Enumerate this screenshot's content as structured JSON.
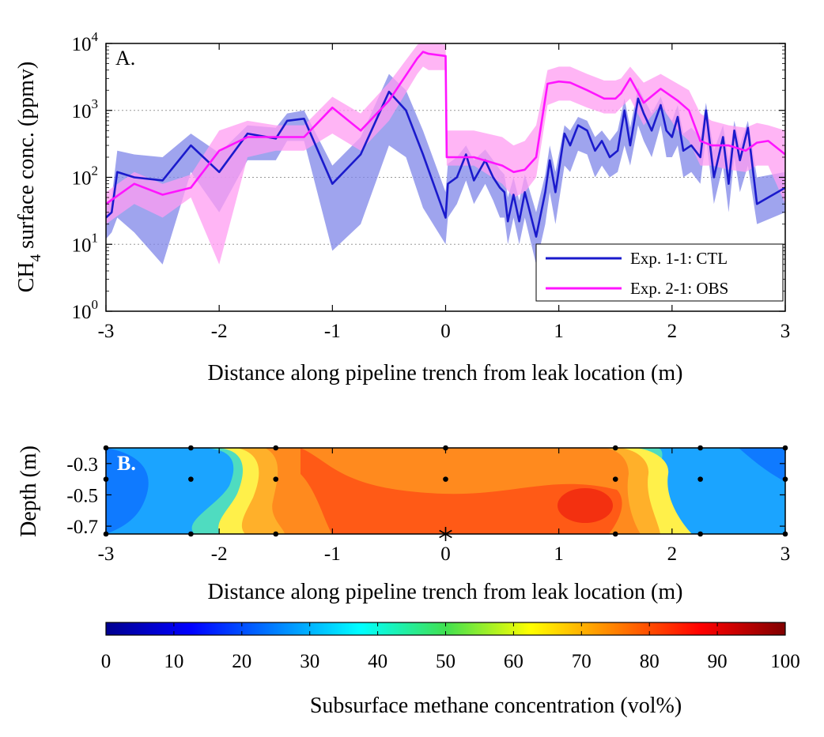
{
  "chart_data": [
    {
      "panel": "A.",
      "type": "line",
      "xlabel": "Distance along pipeline trench from leak location (m)",
      "ylabel_main": "CH",
      "ylabel_sub": "4",
      "ylabel_rest": " surface conc. (ppmv)",
      "xlim": [
        -3,
        3
      ],
      "ylim": [
        1,
        10000
      ],
      "yscale": "log",
      "xticks": [
        "-3",
        "-2",
        "-1",
        "0",
        "1",
        "2",
        "3"
      ],
      "yticks": [
        {
          "base": "10",
          "exp": "0"
        },
        {
          "base": "10",
          "exp": "1"
        },
        {
          "base": "10",
          "exp": "2"
        },
        {
          "base": "10",
          "exp": "3"
        },
        {
          "base": "10",
          "exp": "4"
        }
      ],
      "grid": "horizontal dotted at decades",
      "legend_position": "bottom-right",
      "series": [
        {
          "name": "Exp. 1-1: CTL",
          "color": "#1a1acc",
          "band_color": "#7f86e8",
          "x": [
            -3.0,
            -2.95,
            -2.9,
            -2.75,
            -2.5,
            -2.25,
            -2.0,
            -1.75,
            -1.5,
            -1.4,
            -1.25,
            -1.0,
            -0.75,
            -0.5,
            -0.35,
            -0.2,
            0.0,
            0.02,
            0.1,
            0.18,
            0.25,
            0.35,
            0.42,
            0.48,
            0.52,
            0.55,
            0.6,
            0.65,
            0.7,
            0.8,
            0.88,
            0.92,
            0.97,
            1.05,
            1.1,
            1.17,
            1.25,
            1.32,
            1.38,
            1.45,
            1.52,
            1.58,
            1.63,
            1.7,
            1.75,
            1.82,
            1.9,
            1.95,
            2.0,
            2.05,
            2.1,
            2.17,
            2.25,
            2.3,
            2.37,
            2.45,
            2.5,
            2.55,
            2.6,
            2.67,
            2.75,
            3.0
          ],
          "values": [
            25,
            30,
            120,
            100,
            90,
            300,
            120,
            450,
            380,
            700,
            750,
            80,
            220,
            1900,
            1000,
            220,
            25,
            80,
            100,
            220,
            90,
            180,
            100,
            70,
            60,
            22,
            55,
            22,
            60,
            13,
            60,
            180,
            60,
            450,
            300,
            600,
            500,
            250,
            350,
            200,
            250,
            1000,
            300,
            1500,
            900,
            500,
            1200,
            500,
            400,
            800,
            250,
            300,
            200,
            1000,
            100,
            400,
            80,
            500,
            180,
            550,
            40,
            70
          ],
          "upper": [
            40,
            50,
            250,
            220,
            200,
            450,
            230,
            600,
            550,
            900,
            1000,
            150,
            400,
            3500,
            2000,
            500,
            60,
            160,
            200,
            300,
            180,
            260,
            180,
            130,
            110,
            50,
            100,
            45,
            110,
            30,
            110,
            300,
            120,
            600,
            500,
            800,
            700,
            400,
            500,
            350,
            500,
            1500,
            550,
            2200,
            1500,
            900,
            1600,
            900,
            700,
            1200,
            450,
            550,
            400,
            1300,
            250,
            600,
            180,
            700,
            300,
            700,
            100,
            120
          ],
          "lower": [
            12,
            15,
            25,
            15,
            5,
            120,
            30,
            180,
            180,
            350,
            350,
            8,
            20,
            300,
            200,
            35,
            10,
            25,
            40,
            90,
            40,
            80,
            45,
            25,
            25,
            10,
            25,
            10,
            25,
            5,
            20,
            60,
            20,
            150,
            120,
            250,
            220,
            100,
            150,
            100,
            120,
            300,
            150,
            600,
            350,
            200,
            600,
            200,
            200,
            300,
            100,
            120,
            80,
            400,
            40,
            150,
            30,
            200,
            60,
            150,
            20,
            30
          ]
        },
        {
          "name": "Exp. 2-1: OBS",
          "color": "#ff14ff",
          "band_color": "#ff9cf2",
          "x": [
            -3.0,
            -2.75,
            -2.5,
            -2.25,
            -2.0,
            -1.75,
            -1.5,
            -1.25,
            -1.0,
            -0.75,
            -0.5,
            -0.25,
            -0.2,
            -0.15,
            0.0,
            0.01,
            0.25,
            0.5,
            0.6,
            0.7,
            0.8,
            0.9,
            1.0,
            1.1,
            1.25,
            1.4,
            1.5,
            1.55,
            1.63,
            1.75,
            1.9,
            2.05,
            2.15,
            2.25,
            2.35,
            2.5,
            2.65,
            2.75,
            2.85,
            3.0
          ],
          "values": [
            40,
            80,
            55,
            70,
            250,
            400,
            400,
            400,
            1100,
            500,
            1400,
            6000,
            7500,
            7000,
            6500,
            200,
            200,
            150,
            120,
            130,
            200,
            2500,
            2700,
            2600,
            2000,
            1500,
            1500,
            1800,
            3000,
            1300,
            2100,
            1400,
            1000,
            350,
            300,
            300,
            250,
            330,
            350,
            220
          ],
          "upper": [
            60,
            120,
            80,
            110,
            500,
            700,
            600,
            600,
            1600,
            900,
            2600,
            9500,
            11000,
            10500,
            9500,
            500,
            500,
            400,
            300,
            350,
            600,
            4000,
            4500,
            4500,
            3500,
            2800,
            2800,
            3000,
            4500,
            2600,
            3500,
            2500,
            2000,
            900,
            700,
            600,
            550,
            650,
            600,
            500
          ],
          "lower": [
            20,
            40,
            25,
            50,
            5,
            200,
            250,
            250,
            450,
            250,
            700,
            3500,
            4500,
            4000,
            4000,
            150,
            150,
            80,
            50,
            60,
            100,
            1200,
            1400,
            1400,
            1100,
            900,
            900,
            1100,
            1500,
            600,
            1200,
            500,
            350,
            150,
            150,
            130,
            120,
            150,
            150,
            40
          ]
        }
      ]
    },
    {
      "panel": "B.",
      "type": "heatmap",
      "xlabel": "Distance along pipeline trench from leak location (m)",
      "ylabel": "Depth (m)",
      "xlim": [
        -3,
        3
      ],
      "ylim": [
        -0.75,
        -0.2
      ],
      "xticks": [
        "-3",
        "-2",
        "-1",
        "0",
        "1",
        "2",
        "3"
      ],
      "yticks": [
        "-0.3",
        "-0.5",
        "-0.7"
      ],
      "sensor_points": [
        {
          "x": -3,
          "y": -0.2
        },
        {
          "x": -2.25,
          "y": -0.2
        },
        {
          "x": -1.5,
          "y": -0.2
        },
        {
          "x": 0,
          "y": -0.2
        },
        {
          "x": 1.5,
          "y": -0.2
        },
        {
          "x": 2.25,
          "y": -0.2
        },
        {
          "x": 3,
          "y": -0.2
        },
        {
          "x": -3,
          "y": -0.4
        },
        {
          "x": -2.25,
          "y": -0.4
        },
        {
          "x": -1.5,
          "y": -0.4
        },
        {
          "x": 0,
          "y": -0.4
        },
        {
          "x": 1.5,
          "y": -0.4
        },
        {
          "x": 2.25,
          "y": -0.4
        },
        {
          "x": 3,
          "y": -0.4
        },
        {
          "x": -3,
          "y": -0.75
        },
        {
          "x": -2.25,
          "y": -0.75
        },
        {
          "x": -1.5,
          "y": -0.75
        },
        {
          "x": 1.5,
          "y": -0.75
        },
        {
          "x": 2.25,
          "y": -0.75
        },
        {
          "x": 3,
          "y": -0.75
        }
      ],
      "leak_marker": {
        "x": 0,
        "y": -0.75
      },
      "colorbar": {
        "label": "Subsurface methane concentration (vol%)",
        "range": [
          0,
          100
        ],
        "ticks": [
          "0",
          "10",
          "20",
          "30",
          "40",
          "50",
          "60",
          "70",
          "80",
          "90",
          "100"
        ],
        "colormap": "jet"
      }
    }
  ]
}
